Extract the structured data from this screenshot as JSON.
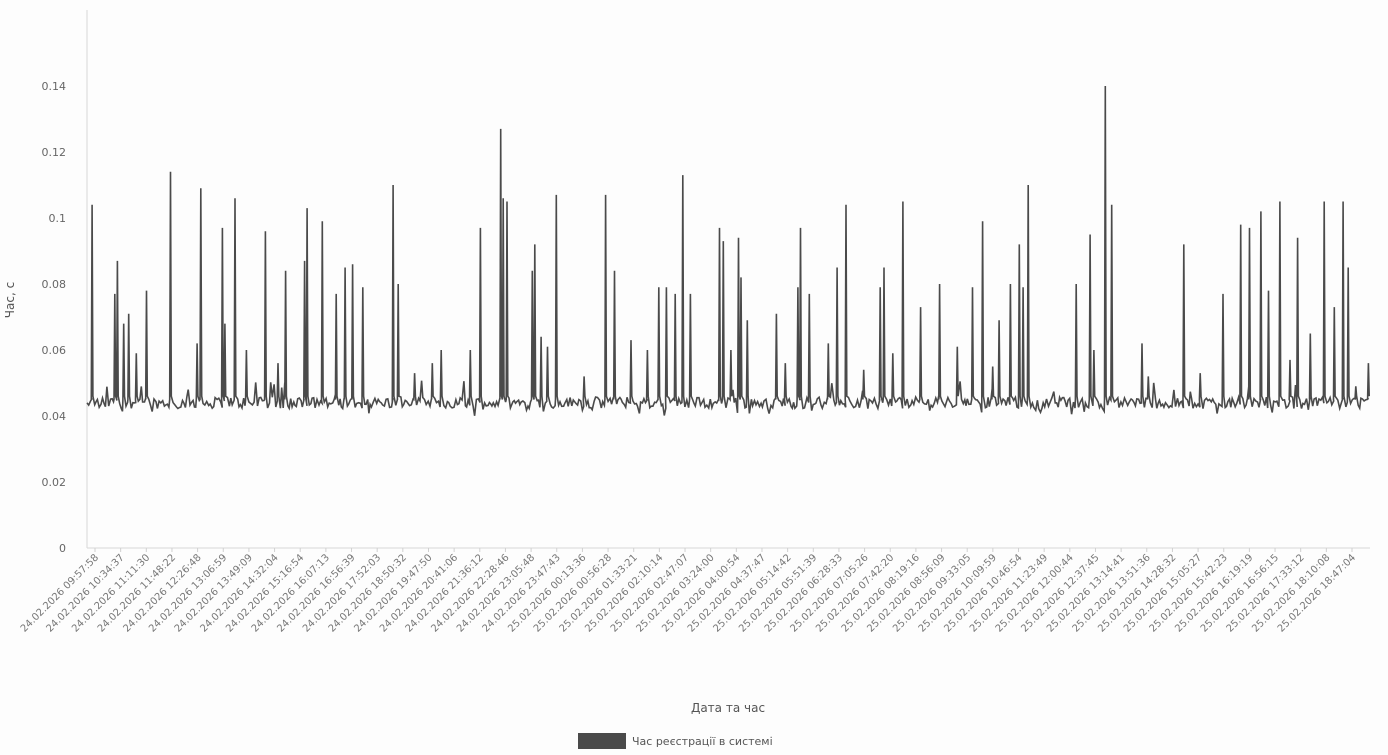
{
  "chart_data": {
    "type": "line",
    "xlabel": "Дата та час",
    "ylabel": "Час, с",
    "ylim": [
      0,
      0.16
    ],
    "yticks": [
      0,
      0.02,
      0.04,
      0.06,
      0.08,
      0.1,
      0.12,
      0.14
    ],
    "grid": false,
    "legend_position": "bottom-center",
    "series_color": "#4a4a4a",
    "series": [
      {
        "name": "Час реєстрації в системі",
        "baseline": 0.044
      }
    ],
    "x_tick_labels": [
      "24.02.2026 09:57:58",
      "24.02.2026 10:34:37",
      "24.02.2026 11:11:30",
      "24.02.2026 11:48:22",
      "24.02.2026 12:26:48",
      "24.02.2026 13:06:59",
      "24.02.2026 13:49:09",
      "24.02.2026 14:32:04",
      "24.02.2026 15:16:54",
      "24.02.2026 16:07:13",
      "24.02.2026 16:56:39",
      "24.02.2026 17:52:03",
      "24.02.2026 18:50:32",
      "24.02.2026 19:47:50",
      "24.02.2026 20:41:06",
      "24.02.2026 21:36:12",
      "24.02.2026 22:28:46",
      "24.02.2026 23:05:48",
      "24.02.2026 23:47:43",
      "25.02.2026 00:13:36",
      "25.02.2026 00:56:28",
      "25.02.2026 01:33:21",
      "25.02.2026 02:10:14",
      "25.02.2026 02:47:07",
      "25.02.2026 03:24:00",
      "25.02.2026 04:00:54",
      "25.02.2026 04:37:47",
      "25.02.2026 05:14:42",
      "25.02.2026 05:51:39",
      "25.02.2026 06:28:33",
      "25.02.2026 07:05:26",
      "25.02.2026 07:42:20",
      "25.02.2026 08:19:16",
      "25.02.2026 08:56:09",
      "25.02.2026 09:33:05",
      "25.02.2026 10:09:59",
      "25.02.2026 10:46:54",
      "25.02.2026 11:23:49",
      "25.02.2026 12:00:44",
      "25.02.2026 12:37:45",
      "25.02.2026 13:14:41",
      "25.02.2026 13:51:36",
      "25.02.2026 14:28:32",
      "25.02.2026 15:05:27",
      "25.02.2026 15:42:23",
      "25.02.2026 16:19:19",
      "25.02.2026 16:56:15",
      "25.02.2026 17:33:12",
      "25.02.2026 18:10:08",
      "25.02.2026 18:47:04"
    ],
    "spikes": [
      {
        "pos": 0.004,
        "y": 0.104
      },
      {
        "pos": 0.022,
        "y": 0.077
      },
      {
        "pos": 0.024,
        "y": 0.087
      },
      {
        "pos": 0.029,
        "y": 0.068
      },
      {
        "pos": 0.033,
        "y": 0.071
      },
      {
        "pos": 0.039,
        "y": 0.059
      },
      {
        "pos": 0.047,
        "y": 0.078
      },
      {
        "pos": 0.066,
        "y": 0.114
      },
      {
        "pos": 0.087,
        "y": 0.062
      },
      {
        "pos": 0.09,
        "y": 0.109
      },
      {
        "pos": 0.107,
        "y": 0.097
      },
      {
        "pos": 0.109,
        "y": 0.068
      },
      {
        "pos": 0.117,
        "y": 0.106
      },
      {
        "pos": 0.126,
        "y": 0.06
      },
      {
        "pos": 0.141,
        "y": 0.096
      },
      {
        "pos": 0.151,
        "y": 0.056
      },
      {
        "pos": 0.157,
        "y": 0.084
      },
      {
        "pos": 0.172,
        "y": 0.087
      },
      {
        "pos": 0.174,
        "y": 0.103
      },
      {
        "pos": 0.186,
        "y": 0.099
      },
      {
        "pos": 0.197,
        "y": 0.077
      },
      {
        "pos": 0.204,
        "y": 0.085
      },
      {
        "pos": 0.21,
        "y": 0.086
      },
      {
        "pos": 0.218,
        "y": 0.079
      },
      {
        "pos": 0.242,
        "y": 0.11
      },
      {
        "pos": 0.246,
        "y": 0.08
      },
      {
        "pos": 0.259,
        "y": 0.053
      },
      {
        "pos": 0.273,
        "y": 0.056
      },
      {
        "pos": 0.28,
        "y": 0.06
      },
      {
        "pos": 0.303,
        "y": 0.06
      },
      {
        "pos": 0.311,
        "y": 0.097
      },
      {
        "pos": 0.327,
        "y": 0.127
      },
      {
        "pos": 0.329,
        "y": 0.106
      },
      {
        "pos": 0.332,
        "y": 0.105
      },
      {
        "pos": 0.352,
        "y": 0.084
      },
      {
        "pos": 0.354,
        "y": 0.092
      },
      {
        "pos": 0.359,
        "y": 0.064
      },
      {
        "pos": 0.364,
        "y": 0.061
      },
      {
        "pos": 0.371,
        "y": 0.107
      },
      {
        "pos": 0.393,
        "y": 0.052
      },
      {
        "pos": 0.41,
        "y": 0.107
      },
      {
        "pos": 0.417,
        "y": 0.084
      },
      {
        "pos": 0.43,
        "y": 0.063
      },
      {
        "pos": 0.443,
        "y": 0.06
      },
      {
        "pos": 0.452,
        "y": 0.079
      },
      {
        "pos": 0.458,
        "y": 0.079
      },
      {
        "pos": 0.465,
        "y": 0.077
      },
      {
        "pos": 0.471,
        "y": 0.113
      },
      {
        "pos": 0.477,
        "y": 0.077
      },
      {
        "pos": 0.5,
        "y": 0.097
      },
      {
        "pos": 0.503,
        "y": 0.093
      },
      {
        "pos": 0.509,
        "y": 0.06
      },
      {
        "pos": 0.515,
        "y": 0.094
      },
      {
        "pos": 0.517,
        "y": 0.082
      },
      {
        "pos": 0.522,
        "y": 0.069
      },
      {
        "pos": 0.545,
        "y": 0.071
      },
      {
        "pos": 0.552,
        "y": 0.056
      },
      {
        "pos": 0.562,
        "y": 0.079
      },
      {
        "pos": 0.564,
        "y": 0.097
      },
      {
        "pos": 0.571,
        "y": 0.077
      },
      {
        "pos": 0.586,
        "y": 0.062
      },
      {
        "pos": 0.593,
        "y": 0.085
      },
      {
        "pos": 0.6,
        "y": 0.104
      },
      {
        "pos": 0.614,
        "y": 0.054
      },
      {
        "pos": 0.627,
        "y": 0.079
      },
      {
        "pos": 0.63,
        "y": 0.085
      },
      {
        "pos": 0.637,
        "y": 0.059
      },
      {
        "pos": 0.645,
        "y": 0.105
      },
      {
        "pos": 0.659,
        "y": 0.073
      },
      {
        "pos": 0.674,
        "y": 0.08
      },
      {
        "pos": 0.688,
        "y": 0.061
      },
      {
        "pos": 0.7,
        "y": 0.079
      },
      {
        "pos": 0.708,
        "y": 0.099
      },
      {
        "pos": 0.716,
        "y": 0.055
      },
      {
        "pos": 0.721,
        "y": 0.069
      },
      {
        "pos": 0.73,
        "y": 0.08
      },
      {
        "pos": 0.737,
        "y": 0.092
      },
      {
        "pos": 0.74,
        "y": 0.079
      },
      {
        "pos": 0.744,
        "y": 0.11
      },
      {
        "pos": 0.782,
        "y": 0.08
      },
      {
        "pos": 0.793,
        "y": 0.095
      },
      {
        "pos": 0.796,
        "y": 0.06
      },
      {
        "pos": 0.805,
        "y": 0.14
      },
      {
        "pos": 0.81,
        "y": 0.104
      },
      {
        "pos": 0.834,
        "y": 0.062
      },
      {
        "pos": 0.839,
        "y": 0.052
      },
      {
        "pos": 0.867,
        "y": 0.092
      },
      {
        "pos": 0.88,
        "y": 0.053
      },
      {
        "pos": 0.898,
        "y": 0.077
      },
      {
        "pos": 0.912,
        "y": 0.098
      },
      {
        "pos": 0.919,
        "y": 0.097
      },
      {
        "pos": 0.928,
        "y": 0.102
      },
      {
        "pos": 0.934,
        "y": 0.078
      },
      {
        "pos": 0.943,
        "y": 0.105
      },
      {
        "pos": 0.951,
        "y": 0.057
      },
      {
        "pos": 0.957,
        "y": 0.094
      },
      {
        "pos": 0.967,
        "y": 0.065
      },
      {
        "pos": 0.978,
        "y": 0.105
      },
      {
        "pos": 0.986,
        "y": 0.073
      },
      {
        "pos": 0.993,
        "y": 0.105
      },
      {
        "pos": 0.997,
        "y": 0.085
      },
      {
        "pos": 1.003,
        "y": 0.049
      },
      {
        "pos": 1.013,
        "y": 0.056
      },
      {
        "pos": 1.02,
        "y": 0.094
      },
      {
        "pos": 1.022,
        "y": 0.09
      }
    ]
  }
}
